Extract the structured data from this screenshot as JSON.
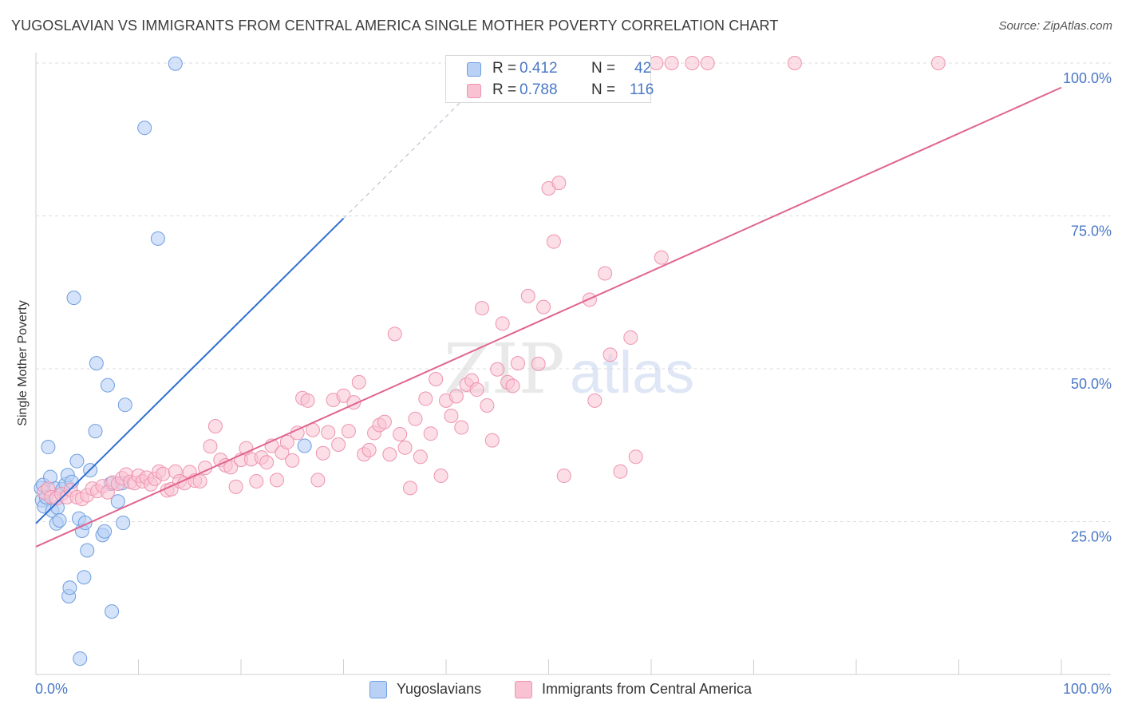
{
  "title": "YUGOSLAVIAN VS IMMIGRANTS FROM CENTRAL AMERICA SINGLE MOTHER POVERTY CORRELATION CHART",
  "source": "Source: ZipAtlas.com",
  "watermark": {
    "zip": "ZIP",
    "atlas": "atlas"
  },
  "legend_top": [
    {
      "r_key": "R = ",
      "r_value": "0.412",
      "n_key": "N = ",
      "n_value": "42"
    },
    {
      "r_key": "R = ",
      "r_value": "0.788",
      "n_key": "N = ",
      "n_value": "116"
    }
  ],
  "chart_data": {
    "type": "scatter",
    "title": "YUGOSLAVIAN VS IMMIGRANTS FROM CENTRAL AMERICA SINGLE MOTHER POVERTY CORRELATION CHART",
    "xlabel": "",
    "ylabel": "Single Mother Poverty",
    "xlim": [
      0,
      100
    ],
    "ylim": [
      0,
      100
    ],
    "x_tick_labels": [
      "0.0%",
      "100.0%"
    ],
    "y_tick_labels": [
      "25.0%",
      "50.0%",
      "75.0%",
      "100.0%"
    ],
    "y_ticks": [
      25,
      50,
      75,
      100
    ],
    "grid": true,
    "legend_position": "bottom",
    "colors": {
      "yugoslavians_fill": "#b8d1f5",
      "yugoslavians_stroke": "#6f9ee0",
      "yugoslavians_line": "#2f6fd0",
      "central_america_fill": "#f9c2d3",
      "central_america_stroke": "#ee93b0",
      "central_america_line": "#e0648f",
      "axis_label": "#4a78c6"
    },
    "series": [
      {
        "name": "Yugoslavians",
        "r": 0.412,
        "n": 42,
        "trend": {
          "x0": 0,
          "y0": 24.7,
          "x1": 30.0,
          "y1": 74.6,
          "dash_to_x": 42.0,
          "dash_to_y": 94.6
        },
        "points": [
          [
            0.5,
            30.5
          ],
          [
            0.6,
            28.5
          ],
          [
            0.7,
            31.0
          ],
          [
            0.8,
            27.5
          ],
          [
            1.0,
            29.0
          ],
          [
            1.2,
            37.2
          ],
          [
            1.4,
            32.3
          ],
          [
            1.6,
            26.8
          ],
          [
            1.9,
            30.4
          ],
          [
            2.0,
            24.7
          ],
          [
            2.1,
            27.3
          ],
          [
            2.3,
            25.2
          ],
          [
            2.6,
            30.3
          ],
          [
            2.9,
            31.1
          ],
          [
            3.1,
            32.6
          ],
          [
            3.2,
            12.8
          ],
          [
            3.3,
            14.2
          ],
          [
            3.5,
            31.5
          ],
          [
            3.7,
            61.6
          ],
          [
            4.0,
            34.9
          ],
          [
            4.2,
            25.5
          ],
          [
            4.3,
            2.6
          ],
          [
            4.5,
            23.5
          ],
          [
            4.7,
            15.9
          ],
          [
            4.8,
            24.8
          ],
          [
            5.0,
            20.3
          ],
          [
            5.3,
            33.4
          ],
          [
            5.8,
            39.8
          ],
          [
            5.9,
            50.9
          ],
          [
            6.5,
            22.8
          ],
          [
            6.7,
            23.4
          ],
          [
            7.0,
            47.3
          ],
          [
            7.3,
            31.2
          ],
          [
            7.4,
            10.3
          ],
          [
            8.0,
            28.3
          ],
          [
            8.4,
            31.3
          ],
          [
            8.5,
            24.8
          ],
          [
            8.7,
            44.1
          ],
          [
            10.6,
            89.4
          ],
          [
            11.9,
            71.3
          ],
          [
            13.6,
            99.9
          ],
          [
            26.2,
            37.4
          ]
        ]
      },
      {
        "name": "Immigrants from Central America",
        "r": 0.788,
        "n": 116,
        "trend": {
          "x0": 0,
          "y0": 20.9,
          "x1": 100,
          "y1": 96.0
        },
        "points": [
          [
            0.8,
            29.8
          ],
          [
            1.2,
            30.4
          ],
          [
            1.5,
            29.0
          ],
          [
            2.0,
            28.8
          ],
          [
            2.5,
            29.5
          ],
          [
            3.0,
            29.0
          ],
          [
            3.4,
            30.2
          ],
          [
            4.0,
            29.0
          ],
          [
            4.5,
            28.7
          ],
          [
            5.0,
            29.3
          ],
          [
            5.5,
            30.4
          ],
          [
            6.0,
            30.0
          ],
          [
            6.5,
            30.8
          ],
          [
            7.0,
            29.8
          ],
          [
            7.5,
            31.4
          ],
          [
            8.0,
            31.2
          ],
          [
            8.4,
            32.1
          ],
          [
            8.8,
            32.7
          ],
          [
            9.2,
            31.5
          ],
          [
            9.6,
            31.3
          ],
          [
            10.0,
            32.5
          ],
          [
            10.4,
            31.6
          ],
          [
            10.8,
            32.2
          ],
          [
            11.2,
            31.1
          ],
          [
            11.6,
            32.0
          ],
          [
            12.0,
            33.2
          ],
          [
            12.4,
            32.8
          ],
          [
            12.8,
            30.1
          ],
          [
            13.2,
            30.3
          ],
          [
            13.6,
            33.2
          ],
          [
            14.0,
            31.6
          ],
          [
            14.5,
            31.3
          ],
          [
            15.0,
            33.1
          ],
          [
            15.5,
            31.7
          ],
          [
            16.0,
            31.6
          ],
          [
            16.5,
            33.8
          ],
          [
            17.0,
            37.3
          ],
          [
            17.5,
            40.6
          ],
          [
            18.0,
            35.1
          ],
          [
            18.5,
            34.2
          ],
          [
            19.0,
            33.9
          ],
          [
            19.5,
            30.7
          ],
          [
            20.0,
            35.1
          ],
          [
            20.5,
            37.0
          ],
          [
            21.0,
            35.2
          ],
          [
            21.5,
            31.6
          ],
          [
            22.0,
            35.5
          ],
          [
            22.5,
            34.7
          ],
          [
            23.0,
            37.4
          ],
          [
            23.5,
            31.8
          ],
          [
            24.0,
            36.3
          ],
          [
            24.5,
            38.0
          ],
          [
            25.0,
            35.0
          ],
          [
            25.5,
            39.5
          ],
          [
            26.0,
            45.2
          ],
          [
            26.5,
            44.8
          ],
          [
            27.0,
            40.0
          ],
          [
            27.5,
            31.8
          ],
          [
            28.0,
            36.2
          ],
          [
            28.5,
            39.6
          ],
          [
            29.0,
            44.9
          ],
          [
            29.5,
            37.6
          ],
          [
            30.0,
            45.6
          ],
          [
            30.5,
            39.8
          ],
          [
            31.0,
            44.5
          ],
          [
            31.5,
            47.8
          ],
          [
            32.0,
            36.0
          ],
          [
            32.5,
            36.7
          ],
          [
            33.0,
            39.5
          ],
          [
            33.5,
            40.8
          ],
          [
            34.0,
            41.3
          ],
          [
            34.5,
            36.0
          ],
          [
            35.0,
            55.7
          ],
          [
            35.5,
            39.3
          ],
          [
            36.0,
            37.1
          ],
          [
            36.5,
            30.5
          ],
          [
            37.0,
            41.8
          ],
          [
            37.5,
            35.6
          ],
          [
            38.0,
            45.1
          ],
          [
            38.5,
            39.4
          ],
          [
            39.0,
            48.3
          ],
          [
            39.5,
            32.5
          ],
          [
            40.0,
            44.8
          ],
          [
            40.5,
            42.3
          ],
          [
            41.0,
            45.5
          ],
          [
            41.5,
            40.4
          ],
          [
            42.0,
            47.4
          ],
          [
            42.5,
            48.1
          ],
          [
            43.0,
            46.6
          ],
          [
            43.5,
            59.9
          ],
          [
            44.0,
            44.0
          ],
          [
            44.5,
            38.3
          ],
          [
            45.0,
            49.9
          ],
          [
            45.5,
            57.4
          ],
          [
            46.0,
            47.8
          ],
          [
            46.5,
            47.2
          ],
          [
            47.0,
            50.9
          ],
          [
            48.0,
            61.9
          ],
          [
            49.0,
            50.8
          ],
          [
            49.5,
            60.1
          ],
          [
            50.0,
            79.5
          ],
          [
            50.5,
            70.8
          ],
          [
            51.0,
            80.4
          ],
          [
            51.5,
            32.5
          ],
          [
            54.0,
            61.3
          ],
          [
            54.5,
            44.8
          ],
          [
            55.5,
            65.6
          ],
          [
            56.0,
            52.3
          ],
          [
            57.0,
            33.2
          ],
          [
            58.0,
            55.1
          ],
          [
            58.5,
            35.6
          ],
          [
            60.5,
            100.0
          ],
          [
            61.0,
            68.2
          ],
          [
            62.0,
            100.0
          ],
          [
            64.0,
            100.0
          ],
          [
            65.5,
            100.0
          ],
          [
            74.0,
            100.0
          ],
          [
            88.0,
            100.0
          ]
        ]
      }
    ]
  }
}
